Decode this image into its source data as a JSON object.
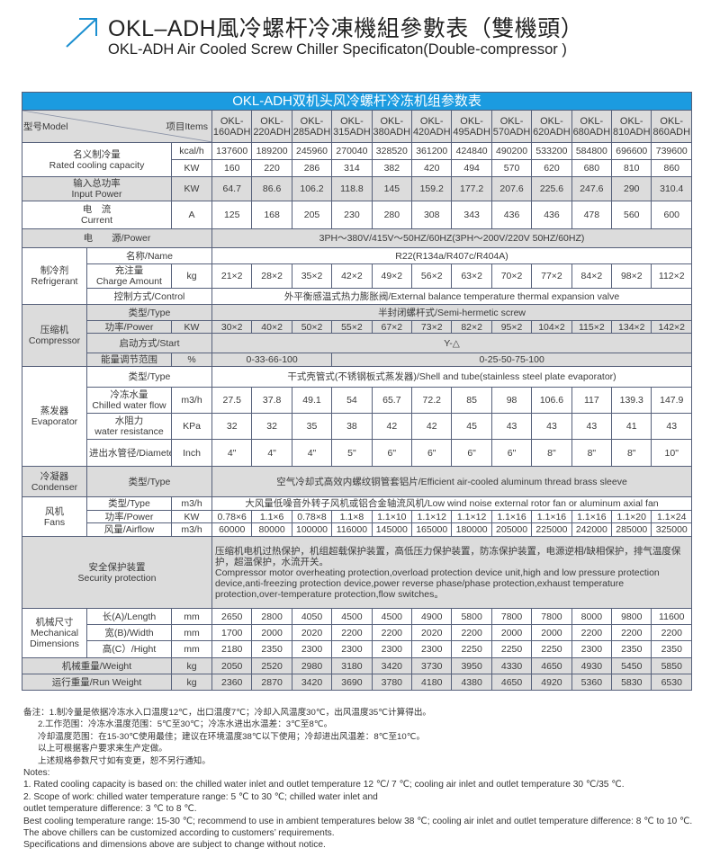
{
  "header": {
    "title_cn": "OKL–ADH風冷螺杆冷凍機組參數表（雙機頭）",
    "title_en": "OKL-ADH Air Cooled Screw Chiller Specificaton(Double-compressor )",
    "accent_color": "#1b9be0",
    "icon": "arrow-up-right-icon"
  },
  "table": {
    "title": "OKL-ADH双机头风冷螺杆冷冻机组参数表",
    "model_label": "型号Model",
    "items_label": "项目Items",
    "model_prefix": "OKL-",
    "models": [
      "160ADH",
      "220ADH",
      "285ADH",
      "315ADH",
      "380ADH",
      "420ADH",
      "495ADH",
      "570ADH",
      "620ADH",
      "680ADH",
      "810ADH",
      "860ADH"
    ],
    "cooling_capacity": {
      "cn": "名义制冷量",
      "en": "Rated cooling capacity",
      "rows": [
        {
          "unit": "kcal/h",
          "values": [
            "137600",
            "189200",
            "245960",
            "270040",
            "328520",
            "361200",
            "424840",
            "490200",
            "533200",
            "584800",
            "696600",
            "739600"
          ]
        },
        {
          "unit": "KW",
          "values": [
            "160",
            "220",
            "286",
            "314",
            "382",
            "420",
            "494",
            "570",
            "620",
            "680",
            "810",
            "860"
          ]
        }
      ]
    },
    "input_power": {
      "cn": "输入总功率",
      "en": "Input Power",
      "unit": "KW",
      "values": [
        "64.7",
        "86.6",
        "106.2",
        "118.8",
        "145",
        "159.2",
        "177.2",
        "207.6",
        "225.6",
        "247.6",
        "290",
        "310.4"
      ]
    },
    "current": {
      "cn": "电　流",
      "en": "Current",
      "unit": "A",
      "values": [
        "125",
        "168",
        "205",
        "230",
        "280",
        "308",
        "343",
        "436",
        "436",
        "478",
        "560",
        "600"
      ]
    },
    "power_supply": {
      "label": "电　　源/Power",
      "value": "3PH～380V/415V～50HZ/60HZ(3PH～200V/220V   50HZ/60HZ)"
    },
    "refrigerant": {
      "cn": "制冷剂",
      "en": "Refrigerant",
      "name_label": "名称/Name",
      "name_value": "R22(R134a/R407c/R404A)",
      "charge_cn": "充注量",
      "charge_en": "Charge Amount",
      "charge_unit": "kg",
      "charge_values": [
        "21×2",
        "28×2",
        "35×2",
        "42×2",
        "49×2",
        "56×2",
        "63×2",
        "70×2",
        "77×2",
        "84×2",
        "98×2",
        "112×2"
      ],
      "control_label": "控制方式/Control",
      "control_value": "外平衡感温式热力膨胀阀/External balance temperature thermal expansion valve"
    },
    "compressor": {
      "cn": "压缩机",
      "en": "Compressor",
      "type_label": "类型/Type",
      "type_value": "半封闭螺杆式/Semi-hermetic screw",
      "power_label": "功率/Power",
      "power_unit": "KW",
      "power_values": [
        "30×2",
        "40×2",
        "50×2",
        "55×2",
        "67×2",
        "73×2",
        "82×2",
        "95×2",
        "104×2",
        "115×2",
        "134×2",
        "142×2"
      ],
      "start_label": "启动方式/Start",
      "start_value": "Y-△",
      "energy_label": "能量调节范围",
      "energy_unit": "%",
      "energy_values": [
        "0-33-66-100",
        "0-25-50-75-100"
      ]
    },
    "evaporator": {
      "cn": "蒸发器",
      "en": "Evaporator",
      "type_label": "类型/Type",
      "type_value": "干式壳管式(不锈钢板式蒸发器)/Shell and tube(stainless steel plate evaporator)",
      "flow_cn": "冷冻水量",
      "flow_en": "Chilled water flow",
      "flow_unit": "m3/h",
      "flow_values": [
        "27.5",
        "37.8",
        "49.1",
        "54",
        "65.7",
        "72.2",
        "85",
        "98",
        "106.6",
        "117",
        "139.3",
        "147.9"
      ],
      "res_cn": "水阻力",
      "res_en": "water resistance",
      "res_unit": "KPa",
      "res_values": [
        "32",
        "32",
        "35",
        "38",
        "42",
        "42",
        "45",
        "43",
        "43",
        "43",
        "41",
        "43"
      ],
      "dia_label": "进出水管径/Diameter",
      "dia_unit": "Inch",
      "dia_values": [
        "4\"",
        "4\"",
        "4\"",
        "5\"",
        "6\"",
        "6\"",
        "6\"",
        "6\"",
        "8\"",
        "8\"",
        "8\"",
        "10\""
      ]
    },
    "condenser": {
      "cn": "冷凝器",
      "en": "Condenser",
      "type_label": "类型/Type",
      "type_value": "空气冷却式高效内螺纹铜管套铝片/Efficient air-cooled aluminum thread brass sleeve"
    },
    "fans": {
      "cn": "风机",
      "en": "Fans",
      "type_label": "类型/Type",
      "type_unit": "m3/h",
      "type_value": "大风量低噪音外转子风机或铝合金轴流风机/Low wind noise external rotor fan or aluminum axial fan",
      "power_label": "功率/Power",
      "power_unit": "KW",
      "power_values": [
        "0.78×6",
        "1.1×6",
        "0.78×8",
        "1.1×8",
        "1.1×10",
        "1.1×12",
        "1.1×12",
        "1.1×16",
        "1.1×16",
        "1.1×16",
        "1.1×20",
        "1.1×24"
      ],
      "airflow_label": "风量/Airflow",
      "airflow_unit": "m3/h",
      "airflow_values": [
        "60000",
        "80000",
        "100000",
        "116000",
        "145000",
        "165000",
        "180000",
        "205000",
        "225000",
        "242000",
        "285000",
        "325000"
      ]
    },
    "security": {
      "cn": "安全保护装置",
      "en": "Security protection",
      "text_cn": "压缩机电机过热保护，机组超载保护装置，高低压力保护装置，防冻保护装置，电源逆相/缺相保护，排气温度保护，超温保护，水流开关。",
      "text_en": "Compressor motor overheating protection,overload protection device unit,high and low pressure protection device,anti-freezing protection device,power reverse phase/phase protection,exhaust temperature protection,over-temperature protection,flow switches。"
    },
    "dimensions": {
      "cn": "机械尺寸",
      "en1": "Mechanical",
      "en2": "Dimensions",
      "rows": [
        {
          "label": "长(A)/Length",
          "unit": "mm",
          "values": [
            "2650",
            "2800",
            "4050",
            "4500",
            "4500",
            "4900",
            "5800",
            "7800",
            "7800",
            "8000",
            "9800",
            "11600"
          ]
        },
        {
          "label": "宽(B)/Width",
          "unit": "mm",
          "values": [
            "1700",
            "2000",
            "2020",
            "2200",
            "2200",
            "2020",
            "2200",
            "2000",
            "2000",
            "2200",
            "2200",
            "2200"
          ]
        },
        {
          "label": "高(C）/Hight",
          "unit": "mm",
          "values": [
            "2180",
            "2350",
            "2300",
            "2300",
            "2300",
            "2300",
            "2250",
            "2250",
            "2250",
            "2300",
            "2350",
            "2350"
          ]
        }
      ]
    },
    "weight": {
      "label": "机械重量/Weight",
      "unit": "kg",
      "values": [
        "2050",
        "2520",
        "2980",
        "3180",
        "3420",
        "3730",
        "3950",
        "4330",
        "4650",
        "4930",
        "5450",
        "5850"
      ]
    },
    "run_weight": {
      "label": "运行重量/Run Weight",
      "unit": "kg",
      "values": [
        "2360",
        "2870",
        "3420",
        "3690",
        "3780",
        "4180",
        "4380",
        "4650",
        "4920",
        "5360",
        "5830",
        "6530"
      ]
    }
  },
  "notes": {
    "cn": [
      "备注：1.制冷量是依据冷冻水入口温度12℃，出口温度7℃；冷却入风温度30℃，出风温度35℃计算得出。",
      "2.工作范围：冷冻水温度范围：5℃至30℃；冷冻水进出水温差：3℃至8℃。",
      "冷却温度范围：在15-30℃使用最佳；建议在环境温度38℃以下使用；冷却进出风温差：8℃至10℃。",
      "以上可根据客户要求来生产定做。",
      "上述规格参数尺寸如有变更，恕不另行通知。"
    ],
    "en": [
      "Notes:",
      "1. Rated cooling capacity is based on: the chilled water inlet and outlet temperature 12 ℃/ 7 ℃; cooling air inlet and outlet temperature 30 ℃/35 ℃.",
      "2. Scope of work: chilled water temperature range: 5 ℃ to 30 ℃; chilled water inlet and",
      "outlet temperature difference: 3 ℃ to 8 ℃.",
      "Best cooling temperature range: 15-30 ℃; recommend to use in ambient temperatures below 38 ℃; cooling air inlet and outlet temperature difference: 8 ℃ to 10 ℃.",
      " The above chillers can be customized according to customers’  requirements.",
      "Specifications and dimensions above are subject to change without notice."
    ]
  }
}
